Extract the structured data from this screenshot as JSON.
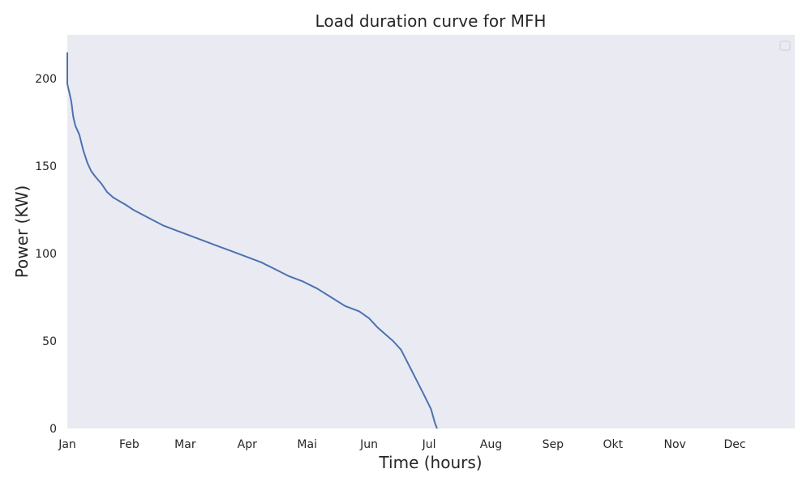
{
  "chart_data": {
    "type": "line",
    "title": "Load duration curve for MFH",
    "xlabel": "Time (hours)",
    "ylabel": "Power (KW)",
    "x_tick_labels": [
      "Jan",
      "Feb",
      "Mar",
      "Apr",
      "Mai",
      "Jun",
      "Jul",
      "Aug",
      "Sep",
      "Okt",
      "Nov",
      "Dec"
    ],
    "x_tick_dates": [
      "2021-01-01",
      "2021-02-01",
      "2021-03-01",
      "2021-04-01",
      "2021-05-01",
      "2021-06-01",
      "2021-07-01",
      "2021-08-01",
      "2021-09-01",
      "2021-10-01",
      "2021-11-01",
      "2021-12-01"
    ],
    "y_ticks": [
      0,
      50,
      100,
      150,
      200
    ],
    "xlim": [
      "2021-01-01",
      "2021-12-31"
    ],
    "ylim": [
      0,
      225
    ],
    "grid": false,
    "legend": "top-right",
    "colors": {
      "series": "#4c72b0",
      "plot_background": "#eaeaf2"
    },
    "series": [
      {
        "x": [
          "2021-01-01",
          "2021-01-01",
          "2021-01-02",
          "2021-01-03",
          "2021-01-04",
          "2021-01-05",
          "2021-01-07",
          "2021-01-09",
          "2021-01-11",
          "2021-01-13",
          "2021-01-15",
          "2021-01-18",
          "2021-01-21",
          "2021-01-24",
          "2021-01-27",
          "2021-01-30",
          "2021-02-03",
          "2021-02-08",
          "2021-02-13",
          "2021-02-18",
          "2021-02-25",
          "2021-03-04",
          "2021-03-11",
          "2021-03-18",
          "2021-03-25",
          "2021-04-01",
          "2021-04-08",
          "2021-04-15",
          "2021-04-22",
          "2021-04-29",
          "2021-05-06",
          "2021-05-13",
          "2021-05-20",
          "2021-05-27",
          "2021-06-01",
          "2021-06-05",
          "2021-06-09",
          "2021-06-13",
          "2021-06-17",
          "2021-06-21",
          "2021-06-25",
          "2021-06-29",
          "2021-07-02",
          "2021-07-04",
          "2021-07-05"
        ],
        "y": [
          215,
          197,
          192,
          187,
          178,
          173,
          168,
          159,
          152,
          147,
          144,
          140,
          135,
          132,
          130,
          128,
          125,
          122,
          119,
          116,
          113,
          110,
          107,
          104,
          101,
          98,
          95,
          91,
          87,
          84,
          80,
          75,
          70,
          67,
          63,
          58,
          54,
          50,
          45,
          36,
          27,
          18,
          11,
          3,
          0
        ]
      }
    ]
  }
}
